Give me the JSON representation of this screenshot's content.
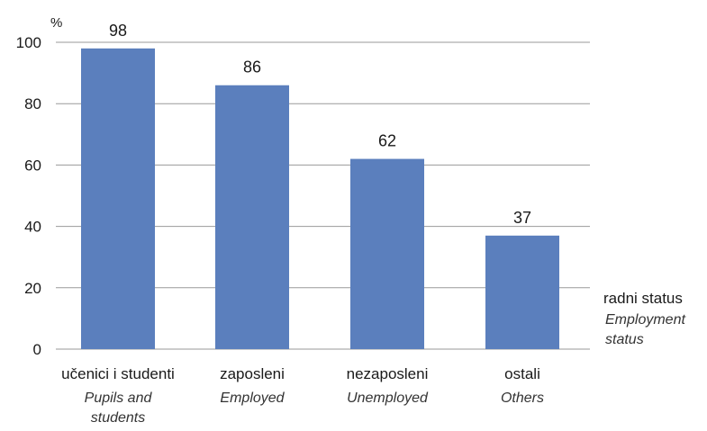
{
  "chart_data": {
    "type": "bar",
    "y_unit": "%",
    "ylim": [
      0,
      100
    ],
    "yticks": [
      0,
      20,
      40,
      60,
      80,
      100
    ],
    "grid": true,
    "categories": [
      {
        "label": "učenici i studenti",
        "sublabel": [
          "Pupils and",
          "students"
        ]
      },
      {
        "label": "zaposleni",
        "sublabel": [
          "Employed"
        ]
      },
      {
        "label": "nezaposleni",
        "sublabel": [
          "Unemployed"
        ]
      },
      {
        "label": "ostali",
        "sublabel": [
          "Others"
        ]
      }
    ],
    "values": [
      98,
      86,
      62,
      37
    ],
    "xlabel": {
      "main": "radni status",
      "sub": [
        "Employment",
        "status"
      ]
    },
    "bar_color": "#5b7fbd",
    "grid_color": "#9a9a9a"
  }
}
